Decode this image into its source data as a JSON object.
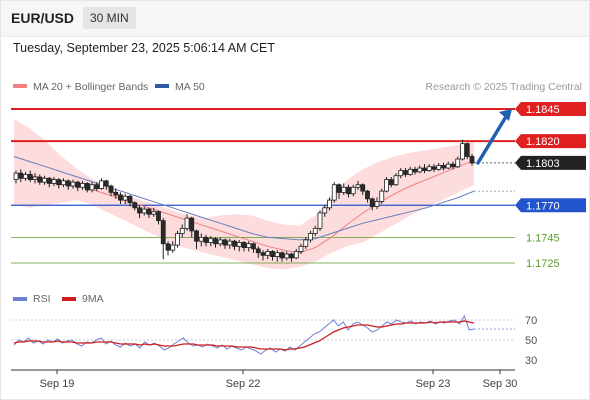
{
  "header": {
    "symbol": "EUR/USD",
    "interval": "30 MIN"
  },
  "timestamp": "Tuesday, September 23, 2025 5:06:14 AM CET",
  "legend": {
    "ma20": "MA 20 + Bollinger Bands",
    "ma50": "MA 50",
    "ma20_color": "#f08080",
    "ma50_color": "#2f5aa0"
  },
  "credit": "Research © 2025 Trading Central",
  "colors": {
    "resistance": "#e02020",
    "support": "#2255cc",
    "target": "#5a9a2e",
    "arrow": "#2060b0",
    "candle_up": "#ffffff",
    "candle_down": "#2a2a2a",
    "band_fill": "#fcd6d6",
    "ma50": "#6a7fc0"
  },
  "chart_data": [
    {
      "type": "candlestick",
      "ylim": [
        1.1718,
        1.1852
      ],
      "x_ticks": [
        "Sep 19",
        "Sep 22",
        "Sep 23",
        "Sep 30"
      ],
      "price_levels": [
        {
          "label": "1.1845",
          "value": 1.1845,
          "kind": "resistance"
        },
        {
          "label": "1.1820",
          "value": 1.182,
          "kind": "resistance"
        },
        {
          "label": "1.1803",
          "value": 1.1803,
          "kind": "current"
        },
        {
          "label": "1.1770",
          "value": 1.177,
          "kind": "pivot"
        },
        {
          "label": "1.1745",
          "value": 1.1745,
          "kind": "support"
        },
        {
          "label": "1.1725",
          "value": 1.1725,
          "kind": "support"
        }
      ],
      "series": [
        {
          "name": "MA 20 + Bollinger Bands",
          "values": [
            1.1795,
            1.1793,
            1.1791,
            1.1789,
            1.1786,
            1.1782,
            1.1778,
            1.1774,
            1.177,
            1.1766,
            1.1762,
            1.1758,
            1.1754,
            1.175,
            1.1746,
            1.1742,
            1.1738,
            1.1735,
            1.1733,
            1.1737,
            1.1745,
            1.1755,
            1.1764,
            1.1772,
            1.1779,
            1.1785,
            1.179,
            1.1795,
            1.18,
            1.1805
          ]
        },
        {
          "name": "MA 50",
          "values": [
            1.1808,
            1.1804,
            1.18,
            1.1796,
            1.1792,
            1.1788,
            1.1784,
            1.178,
            1.1776,
            1.1772,
            1.1768,
            1.1764,
            1.176,
            1.1756,
            1.1752,
            1.1748,
            1.1745,
            1.1744,
            1.1743,
            1.1744,
            1.1748,
            1.1752,
            1.1756,
            1.1759,
            1.1762,
            1.1765,
            1.1768,
            1.1772,
            1.1776,
            1.1781
          ]
        }
      ],
      "bollinger_upper": [
        1.1837,
        1.183,
        1.182,
        1.1808,
        1.1798,
        1.179,
        1.1784,
        1.1778,
        1.1774,
        1.177,
        1.1766,
        1.1762,
        1.176,
        1.1762,
        1.1763,
        1.1762,
        1.1758,
        1.1755,
        1.1754,
        1.1762,
        1.1777,
        1.179,
        1.1798,
        1.1804,
        1.1808,
        1.1811,
        1.1813,
        1.1815,
        1.1817,
        1.182
      ],
      "bollinger_lower": [
        1.177,
        1.1768,
        1.177,
        1.1772,
        1.1774,
        1.177,
        1.1764,
        1.1758,
        1.1752,
        1.1746,
        1.174,
        1.1736,
        1.1733,
        1.173,
        1.1727,
        1.1724,
        1.1721,
        1.172,
        1.1722,
        1.1726,
        1.1733,
        1.1738,
        1.1741,
        1.1748,
        1.1755,
        1.1762,
        1.1768,
        1.1774,
        1.178,
        1.1786
      ],
      "candles": [
        [
          1.179,
          1.1795,
          1.1797,
          1.1787
        ],
        [
          1.1795,
          1.1791,
          1.1798,
          1.1788
        ],
        [
          1.1791,
          1.1794,
          1.1796,
          1.1789
        ],
        [
          1.1794,
          1.179,
          1.1797,
          1.1788
        ],
        [
          1.179,
          1.1792,
          1.1795,
          1.1787
        ],
        [
          1.1792,
          1.1788,
          1.1794,
          1.1786
        ],
        [
          1.1788,
          1.1791,
          1.1793,
          1.1786
        ],
        [
          1.1791,
          1.1787,
          1.1792,
          1.1784
        ],
        [
          1.1787,
          1.179,
          1.1792,
          1.1785
        ],
        [
          1.179,
          1.1786,
          1.1791,
          1.1783
        ],
        [
          1.1786,
          1.1789,
          1.1791,
          1.1784
        ],
        [
          1.1789,
          1.1785,
          1.179,
          1.1782
        ],
        [
          1.1785,
          1.1788,
          1.179,
          1.1783
        ],
        [
          1.1788,
          1.1784,
          1.1789,
          1.1781
        ],
        [
          1.1784,
          1.1787,
          1.1789,
          1.1782
        ],
        [
          1.1787,
          1.1782,
          1.1788,
          1.178
        ],
        [
          1.1782,
          1.1786,
          1.1788,
          1.178
        ],
        [
          1.1786,
          1.1783,
          1.1788,
          1.1781
        ],
        [
          1.1783,
          1.1789,
          1.1791,
          1.1782
        ],
        [
          1.1789,
          1.1785,
          1.179,
          1.1782
        ],
        [
          1.1785,
          1.178,
          1.1786,
          1.1777
        ],
        [
          1.178,
          1.1778,
          1.1783,
          1.1775
        ],
        [
          1.1778,
          1.1774,
          1.178,
          1.1771
        ],
        [
          1.1774,
          1.1777,
          1.1779,
          1.1771
        ],
        [
          1.1777,
          1.1772,
          1.1778,
          1.1769
        ],
        [
          1.1772,
          1.1768,
          1.1773,
          1.1766
        ],
        [
          1.1768,
          1.1764,
          1.177,
          1.176
        ],
        [
          1.1764,
          1.1767,
          1.1769,
          1.1762
        ],
        [
          1.1767,
          1.1763,
          1.1768,
          1.176
        ],
        [
          1.1763,
          1.1765,
          1.1768,
          1.1761
        ],
        [
          1.1765,
          1.1758,
          1.1766,
          1.1755
        ],
        [
          1.1758,
          1.174,
          1.176,
          1.1728
        ],
        [
          1.174,
          1.1735,
          1.1742,
          1.1731
        ],
        [
          1.1735,
          1.1739,
          1.1742,
          1.1733
        ],
        [
          1.1739,
          1.1748,
          1.175,
          1.1737
        ],
        [
          1.1748,
          1.1752,
          1.1755,
          1.1745
        ],
        [
          1.1752,
          1.176,
          1.1763,
          1.175
        ],
        [
          1.176,
          1.175,
          1.1761,
          1.1745
        ],
        [
          1.175,
          1.1742,
          1.1751,
          1.1736
        ],
        [
          1.1742,
          1.1745,
          1.1748,
          1.1738
        ],
        [
          1.1745,
          1.1741,
          1.1747,
          1.1738
        ],
        [
          1.1741,
          1.1744,
          1.1746,
          1.1738
        ],
        [
          1.1744,
          1.174,
          1.1745,
          1.1737
        ],
        [
          1.174,
          1.1743,
          1.1745,
          1.1738
        ],
        [
          1.1743,
          1.1739,
          1.1744,
          1.1736
        ],
        [
          1.1739,
          1.1742,
          1.1744,
          1.1736
        ],
        [
          1.1742,
          1.1738,
          1.1743,
          1.1735
        ],
        [
          1.1738,
          1.1741,
          1.1743,
          1.1734
        ],
        [
          1.1741,
          1.1737,
          1.1742,
          1.1734
        ],
        [
          1.1737,
          1.174,
          1.1742,
          1.1734
        ],
        [
          1.174,
          1.1736,
          1.1741,
          1.1733
        ],
        [
          1.1736,
          1.1733,
          1.1738,
          1.1729
        ],
        [
          1.1733,
          1.1731,
          1.1735,
          1.1727
        ],
        [
          1.1731,
          1.1734,
          1.1736,
          1.1728
        ],
        [
          1.1734,
          1.173,
          1.1735,
          1.1727
        ],
        [
          1.173,
          1.1733,
          1.1735,
          1.1726
        ],
        [
          1.1733,
          1.1729,
          1.1734,
          1.1726
        ],
        [
          1.1729,
          1.1732,
          1.1734,
          1.1727
        ],
        [
          1.1732,
          1.1729,
          1.1733,
          1.1726
        ],
        [
          1.1729,
          1.1734,
          1.1736,
          1.1728
        ],
        [
          1.1734,
          1.1738,
          1.174,
          1.1732
        ],
        [
          1.1738,
          1.1743,
          1.1745,
          1.1736
        ],
        [
          1.1743,
          1.1748,
          1.175,
          1.1741
        ],
        [
          1.1748,
          1.1752,
          1.1754,
          1.1746
        ],
        [
          1.1752,
          1.1764,
          1.1766,
          1.175
        ],
        [
          1.1764,
          1.1768,
          1.177,
          1.1761
        ],
        [
          1.1768,
          1.1774,
          1.1776,
          1.1766
        ],
        [
          1.1774,
          1.1786,
          1.1788,
          1.1772
        ],
        [
          1.1786,
          1.178,
          1.1787,
          1.1775
        ],
        [
          1.178,
          1.1784,
          1.1787,
          1.1778
        ],
        [
          1.1784,
          1.1779,
          1.1786,
          1.1776
        ],
        [
          1.1779,
          1.1784,
          1.1786,
          1.1777
        ],
        [
          1.1784,
          1.1786,
          1.1789,
          1.1782
        ],
        [
          1.1786,
          1.1781,
          1.1787,
          1.1778
        ],
        [
          1.1781,
          1.1775,
          1.1782,
          1.1772
        ],
        [
          1.1775,
          1.1769,
          1.1776,
          1.1766
        ],
        [
          1.1769,
          1.1773,
          1.1776,
          1.1767
        ],
        [
          1.1773,
          1.1781,
          1.1783,
          1.1771
        ],
        [
          1.1781,
          1.179,
          1.1792,
          1.178
        ],
        [
          1.179,
          1.1786,
          1.1792,
          1.1784
        ],
        [
          1.1786,
          1.1793,
          1.1795,
          1.1785
        ],
        [
          1.1793,
          1.1797,
          1.1799,
          1.1791
        ],
        [
          1.1797,
          1.1794,
          1.1799,
          1.1792
        ],
        [
          1.1794,
          1.1798,
          1.18,
          1.1793
        ],
        [
          1.1798,
          1.1796,
          1.18,
          1.1794
        ],
        [
          1.1796,
          1.1799,
          1.1801,
          1.1795
        ],
        [
          1.1799,
          1.1797,
          1.1802,
          1.1795
        ],
        [
          1.1797,
          1.18,
          1.1802,
          1.1796
        ],
        [
          1.18,
          1.1798,
          1.1802,
          1.1796
        ],
        [
          1.1798,
          1.1801,
          1.1803,
          1.1797
        ],
        [
          1.1801,
          1.1799,
          1.1803,
          1.1797
        ],
        [
          1.1799,
          1.1802,
          1.1804,
          1.1798
        ],
        [
          1.1802,
          1.18,
          1.1804,
          1.1798
        ],
        [
          1.18,
          1.1806,
          1.1808,
          1.1799
        ],
        [
          1.1806,
          1.1818,
          1.1821,
          1.1805
        ],
        [
          1.1818,
          1.1808,
          1.1819,
          1.1806
        ],
        [
          1.1808,
          1.1803,
          1.181,
          1.1801
        ]
      ]
    },
    {
      "type": "line",
      "ylim": [
        20,
        80
      ],
      "y_ticks": [
        30,
        50,
        70
      ],
      "legend": [
        "RSI",
        "9MA"
      ],
      "colors": [
        "#6b7fd6",
        "#d11c1c"
      ],
      "series": [
        {
          "name": "RSI",
          "values": [
            45,
            50,
            48,
            52,
            47,
            49,
            46,
            50,
            48,
            51,
            47,
            49,
            50,
            46,
            44,
            48,
            47,
            50,
            52,
            46,
            49,
            45,
            43,
            47,
            44,
            46,
            42,
            48,
            45,
            47,
            44,
            40,
            42,
            46,
            49,
            52,
            47,
            44,
            45,
            43,
            46,
            44,
            42,
            45,
            41,
            44,
            42,
            40,
            43,
            41,
            39,
            36,
            40,
            42,
            38,
            41,
            39,
            43,
            40,
            44,
            48,
            52,
            56,
            58,
            62,
            66,
            70,
            64,
            68,
            60,
            66,
            68,
            65,
            62,
            58,
            60,
            64,
            68,
            66,
            70,
            68,
            67,
            69,
            66,
            68,
            67,
            69,
            66,
            68,
            67,
            69,
            70,
            66,
            74,
            60,
            61
          ]
        },
        {
          "name": "9MA",
          "values": [
            47,
            48,
            48,
            49,
            49,
            49,
            48,
            48,
            48,
            49,
            48,
            48,
            48,
            47,
            47,
            47,
            47,
            48,
            48,
            48,
            48,
            47,
            46,
            46,
            46,
            46,
            45,
            46,
            45,
            46,
            45,
            44,
            44,
            44,
            45,
            46,
            46,
            46,
            45,
            45,
            45,
            45,
            44,
            44,
            44,
            44,
            43,
            43,
            43,
            43,
            42,
            41,
            41,
            41,
            41,
            41,
            40,
            41,
            41,
            42,
            43,
            45,
            47,
            49,
            52,
            55,
            58,
            60,
            62,
            63,
            64,
            65,
            65,
            65,
            64,
            63,
            63,
            64,
            65,
            66,
            66,
            67,
            67,
            67,
            67,
            67,
            68,
            67,
            68,
            68,
            68,
            68,
            68,
            69,
            68,
            67
          ]
        }
      ]
    }
  ]
}
